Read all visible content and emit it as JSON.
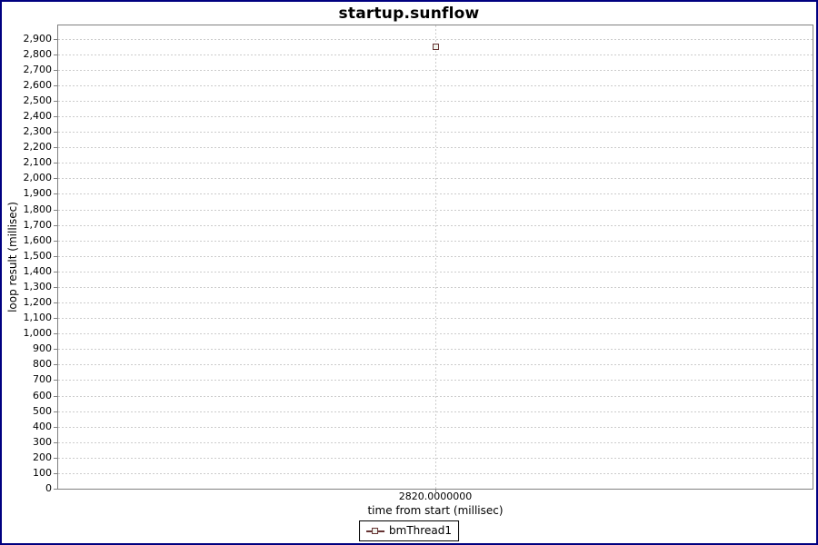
{
  "window": {
    "background": "#FFFFFF",
    "frame_border_color": "#000080"
  },
  "chart_data": {
    "type": "scatter",
    "title": "startup.sunflow",
    "xlabel": "time from start (millisec)",
    "ylabel": "loop result (millisec)",
    "series": [
      {
        "name": "bmThread1",
        "color": "#663333",
        "marker": "square",
        "marker_fill": "#F0F4EE",
        "points": [
          {
            "x": 2820,
            "y": 2850
          }
        ]
      }
    ],
    "x_tick_labels": [
      "2820.0000000"
    ],
    "y_tick_labels": [
      "0",
      "100",
      "200",
      "300",
      "400",
      "500",
      "600",
      "700",
      "800",
      "900",
      "1,000",
      "1,100",
      "1,200",
      "1,300",
      "1,400",
      "1,500",
      "1,600",
      "1,700",
      "1,800",
      "1,900",
      "2,000",
      "2,100",
      "2,200",
      "2,300",
      "2,400",
      "2,500",
      "2,600",
      "2,700",
      "2,800",
      "2,900"
    ],
    "layout": {
      "xlim": [
        2819.5,
        2820.5
      ],
      "ylim": [
        0,
        2985
      ],
      "grid": "dashed",
      "gridline_color": "#CCCCCC",
      "plot_border_color": "#808080",
      "tick_mark_color": "#808080",
      "legend_position": "bottom",
      "legend_border_color": "#000000",
      "title_color": "#000000"
    }
  }
}
